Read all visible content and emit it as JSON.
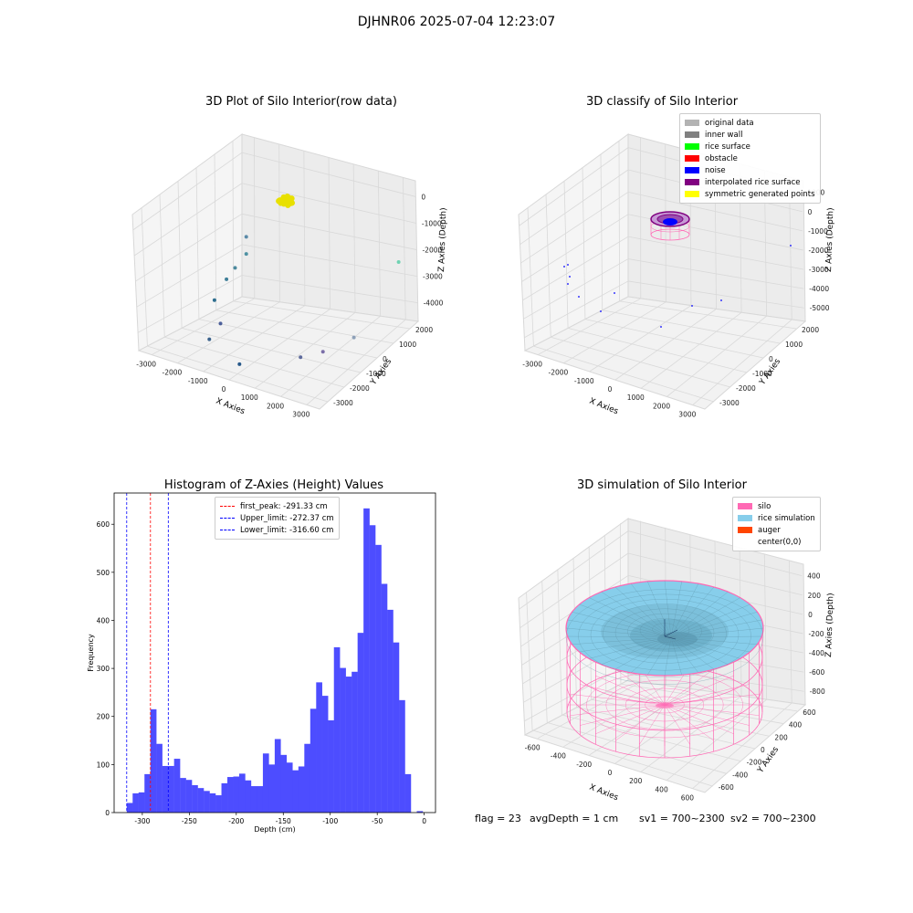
{
  "figure": {
    "title": "DJHNR06 2025-07-04 12:23:07",
    "status": {
      "flag": "flag = 23",
      "avg_depth": "avgDepth = 1 cm",
      "sv1": "sv1 = 700~2300",
      "sv2": "sv2 = 700~2300"
    }
  },
  "chart_data": [
    {
      "type": "scatter",
      "title": "3D Plot of Silo Interior(row data)",
      "xlabel": "X Axies",
      "ylabel": "Y Axies",
      "zlabel": "Z Axies (Depth)",
      "xticks": [
        "-3000",
        "-2000",
        "-1000",
        "0",
        "1000",
        "2000",
        "3000"
      ],
      "yticks": [
        "-3000",
        "-2000",
        "-1000",
        "0",
        "1000",
        "2000"
      ],
      "zticks": [
        "0",
        "-1000",
        "-2000",
        "-3000",
        "-4000"
      ],
      "xlim": [
        -3500,
        3500
      ],
      "ylim": [
        -3500,
        2500
      ],
      "zlim": [
        -4500,
        0
      ],
      "grid": true,
      "clusters": [
        {
          "label": "dense cluster",
          "color": "#e8e000",
          "x": 0,
          "y": 0,
          "z": 0
        }
      ],
      "points": [
        {
          "x": -3000,
          "y": 2000,
          "z": -2500
        },
        {
          "x": -3000,
          "y": 2000,
          "z": -3000
        },
        {
          "x": -3100,
          "y": 1500,
          "z": -3300
        },
        {
          "x": -3100,
          "y": 1000,
          "z": -3500
        },
        {
          "x": -2900,
          "y": 0,
          "z": -3800
        },
        {
          "x": -2000,
          "y": -1000,
          "z": -4000
        },
        {
          "x": -1700,
          "y": -2100,
          "z": -4100
        },
        {
          "x": 0,
          "y": -2900,
          "z": -4200
        },
        {
          "x": 1300,
          "y": -1300,
          "z": -4100
        },
        {
          "x": 1900,
          "y": -900,
          "z": -3900
        },
        {
          "x": 2300,
          "y": 300,
          "z": -3700
        },
        {
          "x": 2900,
          "y": 2000,
          "z": -1800
        }
      ]
    },
    {
      "type": "scatter",
      "title": "3D classify of Silo Interior",
      "xlabel": "X Axies",
      "ylabel": "Y Axies",
      "zlabel": "Z Axies (Depth)",
      "xticks": [
        "-3000",
        "-2000",
        "-1000",
        "0",
        "1000",
        "2000",
        "3000"
      ],
      "yticks": [
        "-3000",
        "-2000",
        "-1000",
        "0",
        "1000",
        "2000"
      ],
      "zticks": [
        "1000",
        "0",
        "-1000",
        "-2000",
        "-3000",
        "-4000",
        "-5000"
      ],
      "grid": true,
      "legend_position": "top-right",
      "legend": [
        {
          "label": "original data",
          "color": "#b3b3b3"
        },
        {
          "label": "inner wall",
          "color": "#808080"
        },
        {
          "label": "rice surface",
          "color": "#00ff00"
        },
        {
          "label": "obstacle",
          "color": "#ff0000"
        },
        {
          "label": "noise",
          "color": "#0000ff"
        },
        {
          "label": "interpolated rice surface",
          "color": "#800080"
        },
        {
          "label": "symmetric generated points",
          "color": "#ffff00"
        }
      ]
    },
    {
      "type": "bar",
      "title": "Histogram of Z-Axies (Height) Values",
      "xlabel": "Depth (cm)",
      "ylabel": "Frequency",
      "xlim": [
        -330,
        12
      ],
      "ylim": [
        0,
        665
      ],
      "xticks": [
        -300,
        -250,
        -200,
        -150,
        -100,
        -50,
        0
      ],
      "yticks": [
        0,
        100,
        200,
        300,
        400,
        500,
        600
      ],
      "bar_color": "#4d4dff",
      "bin_start": -316.6,
      "bin_width": 6.3,
      "values": [
        20,
        40,
        42,
        80,
        215,
        143,
        97,
        97,
        112,
        72,
        68,
        57,
        51,
        45,
        40,
        36,
        61,
        74,
        75,
        81,
        67,
        55,
        55,
        123,
        100,
        153,
        120,
        104,
        88,
        96,
        143,
        216,
        271,
        243,
        192,
        344,
        301,
        283,
        293,
        374,
        633,
        598,
        557,
        476,
        422,
        354,
        234,
        80,
        0,
        3
      ],
      "reference_lines": [
        {
          "name": "first_peak: -291.33 cm",
          "x": -291.33,
          "color": "#ff0000"
        },
        {
          "name": "Upper_limit: -272.37 cm",
          "x": -272.37,
          "color": "#0000ff"
        },
        {
          "name": "Lower_limit: -316.60 cm",
          "x": -316.6,
          "color": "#0000ff"
        }
      ],
      "legend_position": "top-center"
    },
    {
      "type": "area",
      "title": "3D simulation of Silo Interior",
      "xlabel": "X Axies",
      "ylabel": "Y Axies",
      "zlabel": "Z Axies (Depth)",
      "xticks": [
        "-600",
        "-400",
        "-200",
        "0",
        "200",
        "400",
        "600"
      ],
      "yticks": [
        "-600",
        "-400",
        "-200",
        "0",
        "200",
        "400",
        "600"
      ],
      "zticks": [
        "400",
        "200",
        "0",
        "-200",
        "-400",
        "-600",
        "-800"
      ],
      "grid": true,
      "legend_position": "top-right",
      "legend": [
        {
          "label": "silo",
          "color": "#ff69b4"
        },
        {
          "label": "rice simulation",
          "color": "#87ceeb"
        },
        {
          "label": "auger",
          "color": "#ff4500"
        },
        {
          "label": "center(0,0)",
          "color": "#ffffff"
        }
      ]
    }
  ]
}
